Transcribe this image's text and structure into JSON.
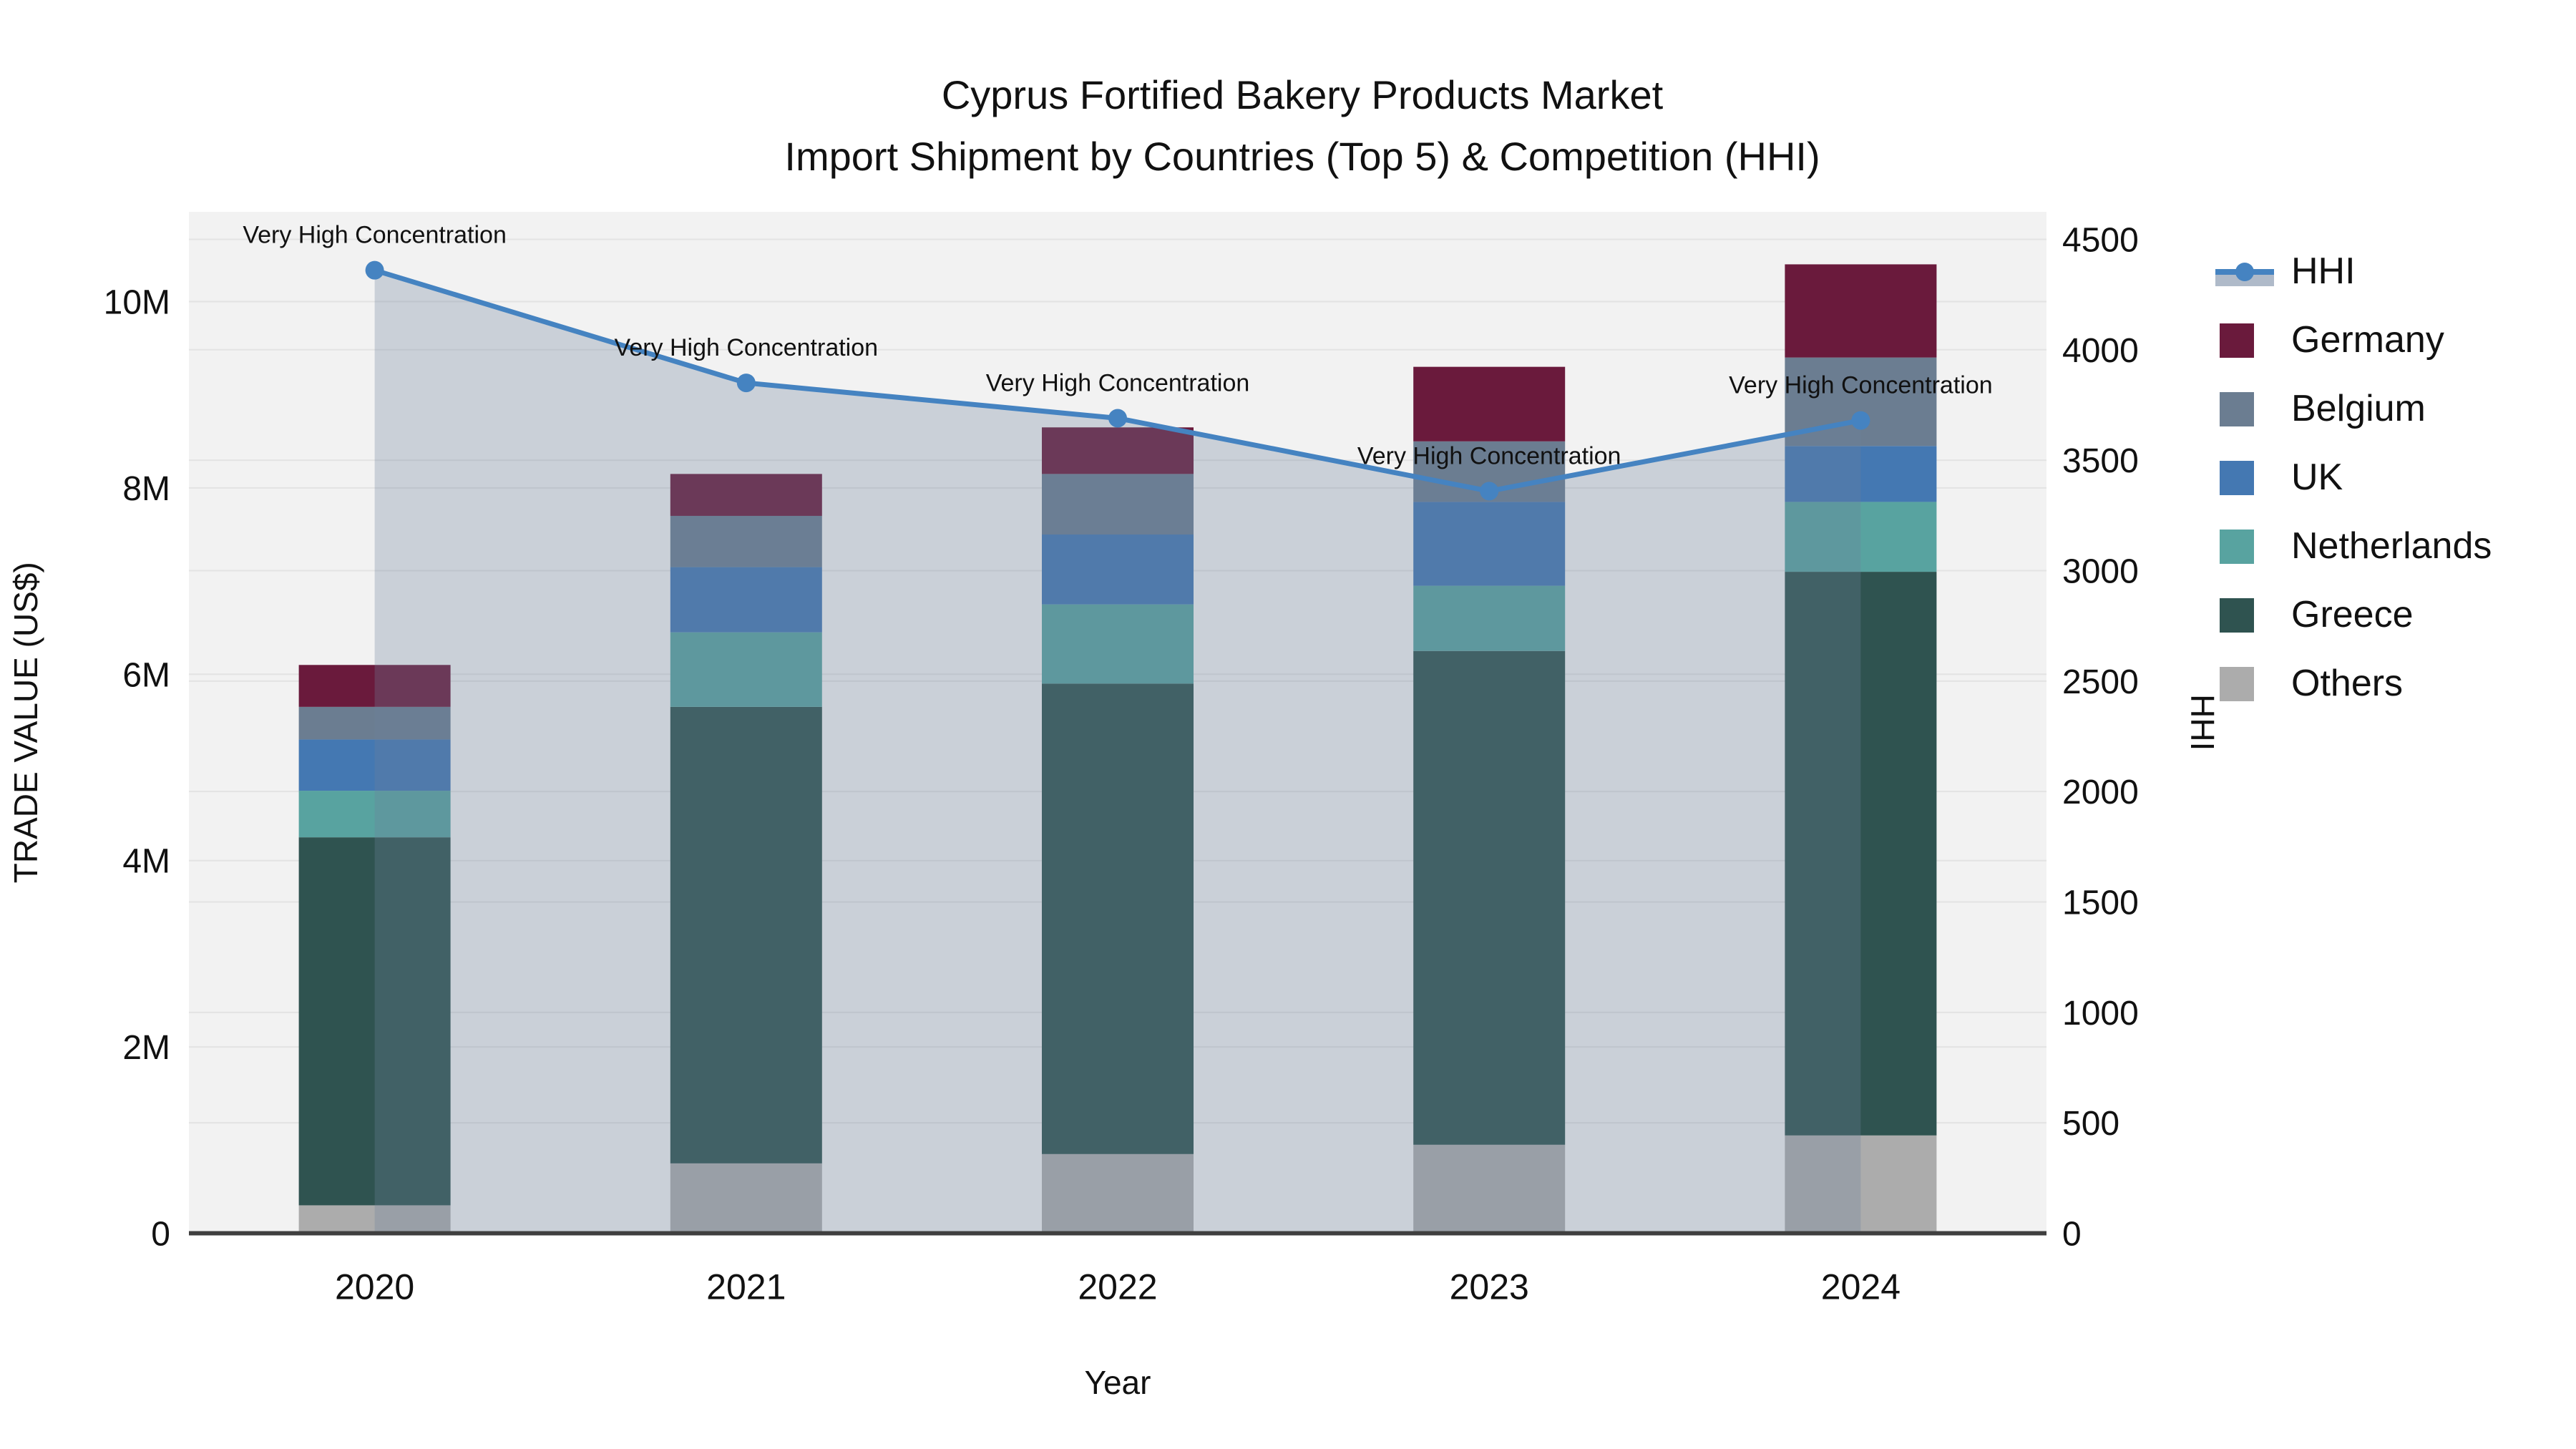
{
  "title": "Cyprus Fortified Bakery Products Market",
  "subtitle": "Import Shipment by Countries (Top 5) & Competition (HHI)",
  "colors": {
    "plot_bg": "#f2f2f2",
    "grid": "#e3e3e3",
    "axis_line": "#3f3f3f",
    "hhi_line": "#4583c1",
    "hhi_fill": "#6e829d",
    "hhi_fill_opacity": 0.3,
    "germany": "#6a1a3c",
    "belgium": "#6b7d91",
    "uk": "#4478b2",
    "netherlands": "#58a3a0",
    "greece": "#2f5350",
    "others": "#acacac"
  },
  "legend": {
    "items": [
      {
        "key": "hhi",
        "label": "HHI",
        "type": "line"
      },
      {
        "key": "germany",
        "label": "Germany",
        "type": "swatch"
      },
      {
        "key": "belgium",
        "label": "Belgium",
        "type": "swatch"
      },
      {
        "key": "uk",
        "label": "UK",
        "type": "swatch"
      },
      {
        "key": "netherlands",
        "label": "Netherlands",
        "type": "swatch"
      },
      {
        "key": "greece",
        "label": "Greece",
        "type": "swatch"
      },
      {
        "key": "others",
        "label": "Others",
        "type": "swatch"
      }
    ]
  },
  "chart_data": {
    "type": "bar",
    "stacked": true,
    "title": "Cyprus Fortified Bakery Products Market",
    "subtitle": "Import Shipment by Countries (Top 5) & Competition (HHI)",
    "xlabel": "Year",
    "ylabel_left": "TRADE VALUE (US$)",
    "ylabel_right": "HHI",
    "categories": [
      "2020",
      "2021",
      "2022",
      "2023",
      "2024"
    ],
    "unit": "million US$",
    "stack_order_bottom_to_top": [
      "others",
      "greece",
      "netherlands",
      "uk",
      "belgium",
      "germany"
    ],
    "series": [
      {
        "key": "germany",
        "name": "Germany",
        "values": [
          0.45,
          0.45,
          0.5,
          0.8,
          1.0
        ]
      },
      {
        "key": "belgium",
        "name": "Belgium",
        "values": [
          0.35,
          0.55,
          0.65,
          0.65,
          0.95
        ]
      },
      {
        "key": "uk",
        "name": "UK",
        "values": [
          0.55,
          0.7,
          0.75,
          0.9,
          0.6
        ]
      },
      {
        "key": "netherlands",
        "name": "Netherlands",
        "values": [
          0.5,
          0.8,
          0.85,
          0.7,
          0.75
        ]
      },
      {
        "key": "greece",
        "name": "Greece",
        "values": [
          3.95,
          4.9,
          5.05,
          5.3,
          6.05
        ]
      },
      {
        "key": "others",
        "name": "Others",
        "values": [
          0.3,
          0.75,
          0.85,
          0.95,
          1.05
        ]
      }
    ],
    "bar_totals": [
      6.1,
      8.15,
      8.65,
      9.3,
      10.4
    ],
    "line_series": {
      "key": "hhi",
      "name": "HHI",
      "axis": "right",
      "values": [
        4360,
        3850,
        3690,
        3360,
        3680
      ],
      "area_fill": true
    },
    "annotations": [
      "Very High Concentration",
      "Very High Concentration",
      "Very High Concentration",
      "Very High Concentration",
      "Very High Concentration"
    ],
    "y_left": {
      "range_max_m": 11,
      "ticks": [
        {
          "value": 0,
          "label": "0"
        },
        {
          "value": 2,
          "label": "2M"
        },
        {
          "value": 4,
          "label": "4M"
        },
        {
          "value": 6,
          "label": "6M"
        },
        {
          "value": 8,
          "label": "8M"
        },
        {
          "value": 10,
          "label": "10M"
        }
      ]
    },
    "y_right": {
      "range_max": 4625,
      "ticks": [
        {
          "value": 0,
          "label": "0"
        },
        {
          "value": 500,
          "label": "500"
        },
        {
          "value": 1000,
          "label": "1000"
        },
        {
          "value": 1500,
          "label": "1500"
        },
        {
          "value": 2000,
          "label": "2000"
        },
        {
          "value": 2500,
          "label": "2500"
        },
        {
          "value": 3000,
          "label": "3000"
        },
        {
          "value": 3500,
          "label": "3500"
        },
        {
          "value": 4000,
          "label": "4000"
        },
        {
          "value": 4500,
          "label": "4500"
        }
      ]
    },
    "grid": true,
    "legend_position": "right"
  }
}
